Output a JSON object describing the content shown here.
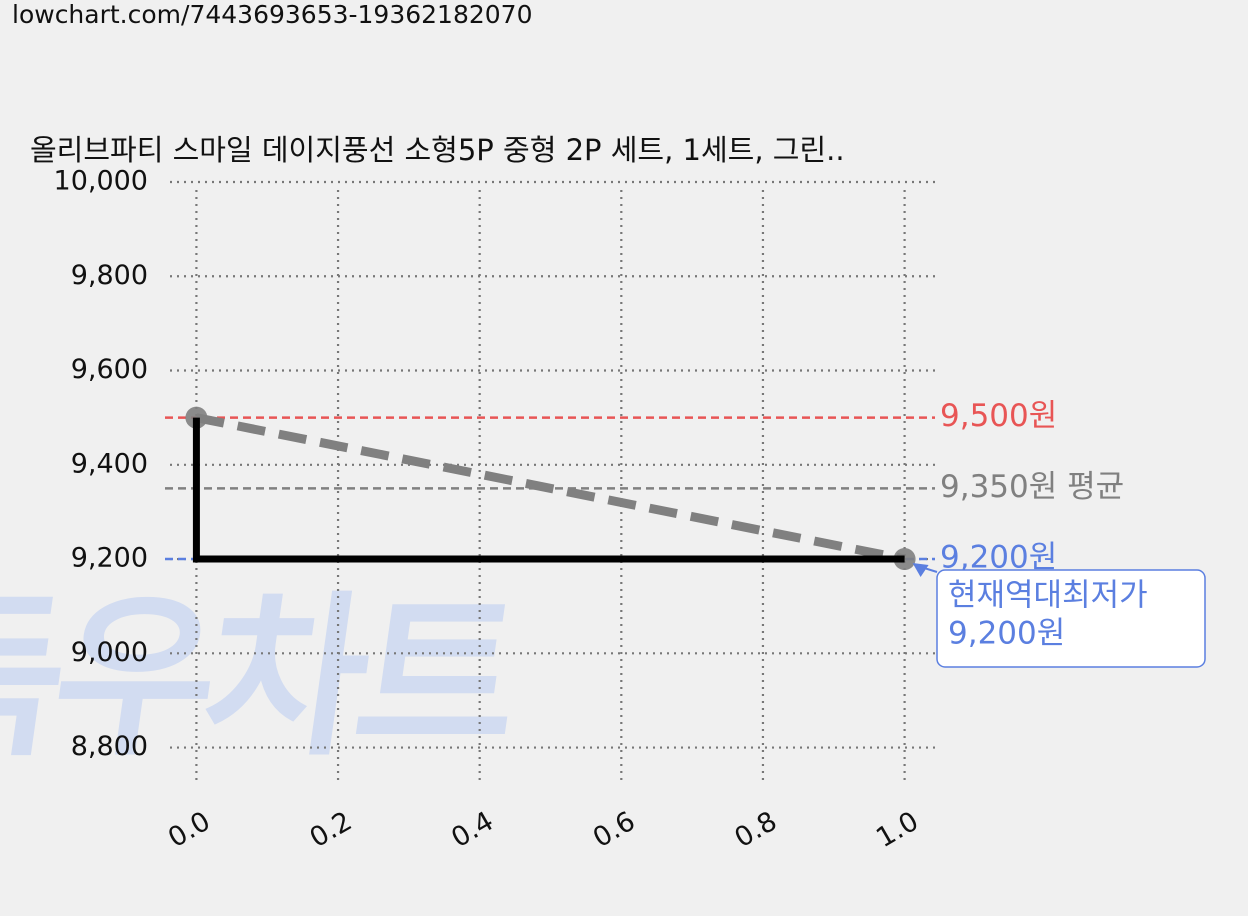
{
  "chart_data": {
    "type": "line",
    "url": "lowchart.com/7443693653-19362182070",
    "title": "올리브파티 스마일 데이지풍선 소형5P 중형 2P 세트, 1세트, 그린..",
    "watermark": "득우차트",
    "xlim": [
      -0.05,
      1.05
    ],
    "ylim": [
      8710,
      10000
    ],
    "xticks": [
      {
        "value": 0,
        "label": "0.0"
      },
      0.2,
      0.4,
      0.6,
      0.8,
      {
        "value": 1,
        "label": "1.0"
      }
    ],
    "yticks": [
      {
        "value": 8800,
        "label": "8,800"
      },
      {
        "value": 9000,
        "label": "9,000"
      },
      {
        "value": 9200,
        "label": "9,200"
      },
      {
        "value": 9400,
        "label": "9,400"
      },
      {
        "value": 9600,
        "label": "9,600"
      },
      {
        "value": 9800,
        "label": "9,800"
      },
      {
        "value": 10000,
        "label": "10,000"
      }
    ],
    "grid": true,
    "series": [
      {
        "color": "#808080",
        "style": "dashed",
        "markers": true,
        "x": [
          0,
          1
        ],
        "values": [
          9500,
          9200
        ]
      },
      {
        "color": "#000000",
        "style": "solid",
        "markers": false,
        "x": [
          0,
          0,
          1
        ],
        "values": [
          9500,
          9200,
          9200
        ]
      }
    ],
    "hlines": [
      {
        "value": 9500,
        "label": "9,500원",
        "color": "#e85555"
      },
      {
        "value": 9350,
        "label": "9,350원 평균",
        "color": "#808080"
      },
      {
        "value": 9200,
        "label": "9,200원",
        "color": "#5b7fe0"
      }
    ],
    "annotation": {
      "lines": [
        "현재역대최저가",
        "9,200원"
      ],
      "x": 1,
      "y": 9200,
      "color": "#5b7fe0"
    }
  }
}
